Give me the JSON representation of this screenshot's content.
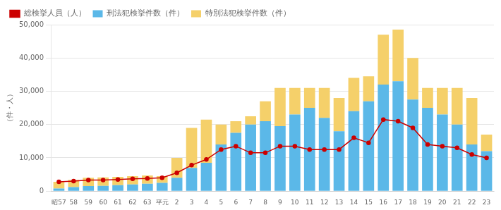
{
  "chart_data": {
    "type": "bar",
    "ylabel": "（件・人）",
    "categories": [
      "昭57",
      "58",
      "59",
      "60",
      "61",
      "62",
      "63",
      "平元",
      "2",
      "3",
      "4",
      "5",
      "6",
      "7",
      "8",
      "9",
      "10",
      "11",
      "12",
      "13",
      "14",
      "15",
      "16",
      "17",
      "18",
      "19",
      "20",
      "21",
      "22",
      "23"
    ],
    "series": [
      {
        "name": "刑法犯検挙件数（件）",
        "type": "bar",
        "color": "#5BB8E8",
        "values": [
          800,
          1200,
          1500,
          1600,
          1800,
          2000,
          2200,
          2500,
          4000,
          7000,
          8500,
          14000,
          17500,
          20000,
          21000,
          19500,
          23000,
          25000,
          22000,
          18000,
          24000,
          27000,
          32000,
          33000,
          27500,
          25000,
          23000,
          20000,
          14000,
          12000
        ]
      },
      {
        "name": "特別法犯検挙件数（件）",
        "type": "bar",
        "color": "#F5D06A",
        "values": [
          2000,
          2200,
          2500,
          2500,
          2500,
          2500,
          2500,
          2000,
          6000,
          12000,
          13000,
          6000,
          3500,
          2500,
          6000,
          11500,
          8000,
          6000,
          9000,
          10000,
          10000,
          7500,
          15000,
          15500,
          12500,
          6000,
          8000,
          11000,
          14000,
          5000
        ]
      },
      {
        "name": "総検挙人員（人）",
        "type": "line",
        "color": "#CC0000",
        "marker": "circle",
        "values": [
          2800,
          3000,
          3300,
          3300,
          3500,
          3700,
          3800,
          4000,
          5500,
          7800,
          9500,
          12500,
          13500,
          11500,
          11500,
          13500,
          13500,
          12500,
          12500,
          12500,
          16000,
          14500,
          21500,
          21000,
          19000,
          14000,
          13500,
          13000,
          11000,
          10000
        ]
      }
    ],
    "ylim": [
      0,
      50000
    ],
    "yticks": [
      0,
      {
        "value": 10000,
        "label": "10,000"
      },
      {
        "value": 20000,
        "label": "20,000"
      },
      {
        "value": 30000,
        "label": "30,000"
      },
      {
        "value": 40000,
        "label": "40,000"
      },
      {
        "value": 50000,
        "label": "50,000"
      }
    ],
    "stacked": true,
    "grid": true,
    "legend": "upper left"
  }
}
